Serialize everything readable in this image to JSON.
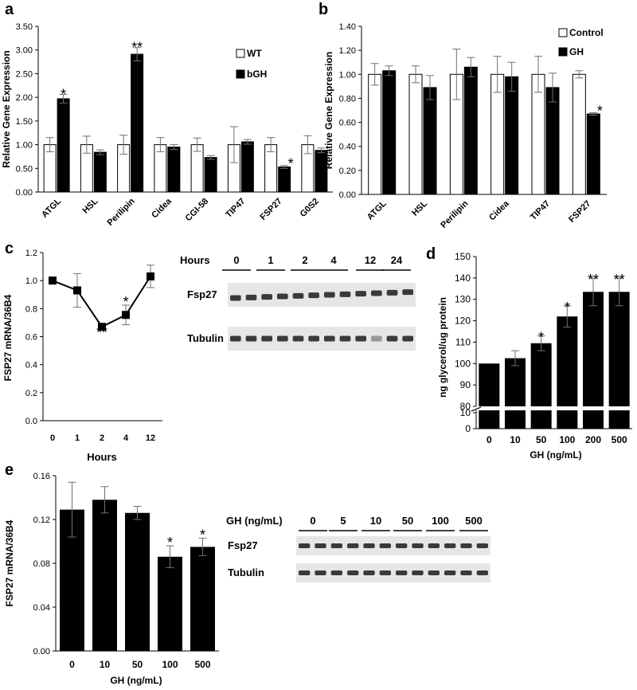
{
  "colors": {
    "bar_dark": "#000000",
    "bar_light": "#ffffff",
    "axis": "#000000",
    "error": "#707070",
    "blot_bg": "#e6e6e6",
    "band": "#3a3a3a"
  },
  "panels": {
    "a": {
      "letter": "a"
    },
    "b": {
      "letter": "b"
    },
    "c": {
      "letter": "c"
    },
    "d": {
      "letter": "d"
    },
    "e": {
      "letter": "e"
    }
  },
  "chart_data": [
    {
      "id": "a",
      "type": "bar",
      "ylabel": "Relative Gene Expression",
      "ylim": [
        0,
        3.5
      ],
      "yticks": [
        "0.00",
        "0.50",
        "1.00",
        "1.50",
        "2.00",
        "2.50",
        "3.00",
        "3.50"
      ],
      "categories": [
        "ATGL",
        "HSL",
        "Perilipin",
        "Cidea",
        "CGI-58",
        "TIP47",
        "FSP27",
        "G0S2"
      ],
      "legend_position": "right",
      "series": [
        {
          "name": "WT",
          "values": [
            1.0,
            1.0,
            1.0,
            1.0,
            1.0,
            1.0,
            1.0,
            1.0
          ],
          "errors": [
            0.15,
            0.18,
            0.2,
            0.15,
            0.14,
            0.38,
            0.15,
            0.19
          ]
        },
        {
          "name": "bGH",
          "values": [
            1.97,
            0.84,
            2.91,
            0.95,
            0.73,
            1.06,
            0.53,
            0.88
          ],
          "errors": [
            0.09,
            0.05,
            0.14,
            0.05,
            0.04,
            0.05,
            0.03,
            0.05
          ]
        }
      ],
      "significance": [
        "*",
        "",
        "**",
        "",
        "",
        "",
        "*",
        ""
      ]
    },
    {
      "id": "b",
      "type": "bar",
      "ylabel": "Relative Gene Expression",
      "ylim": [
        0,
        1.4
      ],
      "yticks": [
        "0.00",
        "0.20",
        "0.40",
        "0.60",
        "0.80",
        "1.00",
        "1.20",
        "1.40"
      ],
      "categories": [
        "ATGL",
        "HSL",
        "Perilipin",
        "Cidea",
        "TIP47",
        "FSP27"
      ],
      "legend_position": "top-right",
      "series": [
        {
          "name": "Control",
          "values": [
            1.0,
            1.0,
            1.0,
            1.0,
            1.0,
            1.0
          ],
          "errors": [
            0.09,
            0.07,
            0.21,
            0.15,
            0.15,
            0.03
          ]
        },
        {
          "name": "GH",
          "values": [
            1.03,
            0.89,
            1.06,
            0.98,
            0.89,
            0.67
          ],
          "errors": [
            0.04,
            0.1,
            0.08,
            0.12,
            0.12,
            0.01
          ]
        }
      ],
      "significance": [
        "",
        "",
        "",
        "",
        "",
        "*"
      ]
    },
    {
      "id": "c",
      "type": "line",
      "ylabel": "FSP27 mRNA/36B4",
      "xlabel": "Hours",
      "ylim": [
        0,
        1.2
      ],
      "yticks": [
        "0.0",
        "0.2",
        "0.4",
        "0.6",
        "0.8",
        "1.0",
        "1.2"
      ],
      "x": [
        "0",
        "1",
        "2",
        "4",
        "12"
      ],
      "values": [
        1.0,
        0.93,
        0.67,
        0.755,
        1.03
      ],
      "errors": [
        0.025,
        0.12,
        0.015,
        0.07,
        0.08
      ],
      "significance": [
        "",
        "",
        "**",
        "*",
        ""
      ]
    },
    {
      "id": "d",
      "type": "bar",
      "ylabel": "ng glycerol/ug protein",
      "xlabel": "GH (ng/mL)",
      "ylim": [
        80,
        150
      ],
      "yticks": [
        "80",
        "90",
        "100",
        "110",
        "120",
        "130",
        "140",
        "150"
      ],
      "lower_segment_ticks": [
        "0",
        "10"
      ],
      "categories": [
        "0",
        "10",
        "50",
        "100",
        "200",
        "500"
      ],
      "values": [
        100,
        102.5,
        109.5,
        122,
        133.5,
        133.5
      ],
      "errors": [
        0,
        3.5,
        3.5,
        5,
        6.5,
        6.5
      ],
      "significance": [
        "",
        "",
        "*",
        "*",
        "**",
        "**"
      ]
    },
    {
      "id": "e",
      "type": "bar",
      "ylabel": "FSP27 mRNA/36B4",
      "xlabel": "GH (ng/mL)",
      "ylim": [
        0,
        0.16
      ],
      "yticks": [
        "0.00",
        "0.04",
        "0.08",
        "0.12",
        "0.16"
      ],
      "categories": [
        "0",
        "10",
        "50",
        "100",
        "500"
      ],
      "values": [
        0.129,
        0.138,
        0.126,
        0.086,
        0.095
      ],
      "errors": [
        0.025,
        0.012,
        0.006,
        0.01,
        0.008
      ],
      "significance": [
        "",
        "",
        "",
        "*",
        "*"
      ]
    }
  ],
  "blots": {
    "c": {
      "header": "Hours",
      "lanes": [
        "0",
        "1",
        "2",
        "4",
        "12",
        "24"
      ],
      "rows": [
        "Fsp27",
        "Tubulin"
      ]
    },
    "e": {
      "header": "GH (ng/mL)",
      "lanes": [
        "0",
        "5",
        "10",
        "50",
        "100",
        "500"
      ],
      "rows": [
        "Fsp27",
        "Tubulin"
      ]
    }
  }
}
